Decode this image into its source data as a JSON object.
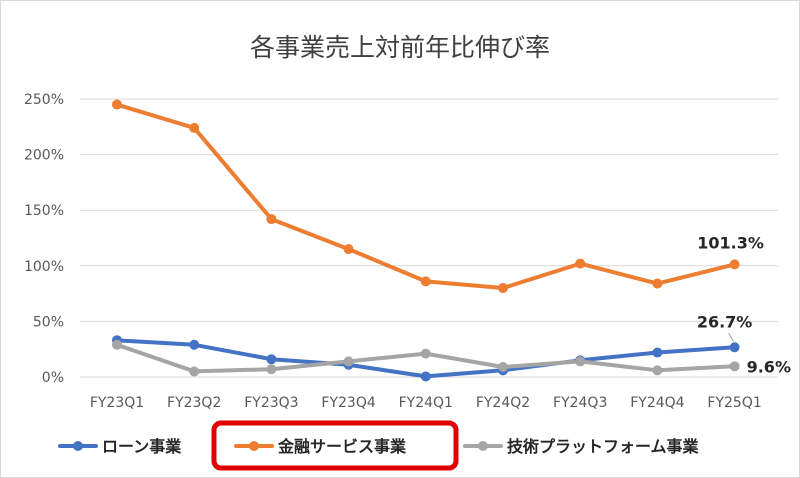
{
  "chart_data": {
    "type": "line",
    "title": "各事業売上対前年比伸び率",
    "categories": [
      "FY23Q1",
      "FY23Q2",
      "FY23Q3",
      "FY23Q4",
      "FY24Q1",
      "FY24Q2",
      "FY24Q3",
      "FY24Q4",
      "FY25Q1"
    ],
    "yticks": [
      "0%",
      "50%",
      "100%",
      "150%",
      "200%",
      "250%"
    ],
    "ylim": [
      0,
      250
    ],
    "grid": true,
    "legend_position": "bottom",
    "series": [
      {
        "name": "ローン事業",
        "color": "#4472c4",
        "values": [
          33,
          29,
          16,
          11,
          0.5,
          6,
          15,
          22,
          26.7
        ],
        "last_label": "26.7%"
      },
      {
        "name": "金融サービス事業",
        "color": "#ed7d31",
        "values": [
          245,
          224,
          142,
          115,
          86,
          80,
          102,
          84,
          101.3
        ],
        "last_label": "101.3%"
      },
      {
        "name": "技術プラットフォーム事業",
        "color": "#a5a5a5",
        "values": [
          29,
          5,
          7,
          14,
          21,
          9,
          14,
          6,
          9.6
        ],
        "last_label": "9.6%"
      }
    ],
    "highlight": {
      "series": "金融サービス事業",
      "color": "#e00000"
    }
  }
}
